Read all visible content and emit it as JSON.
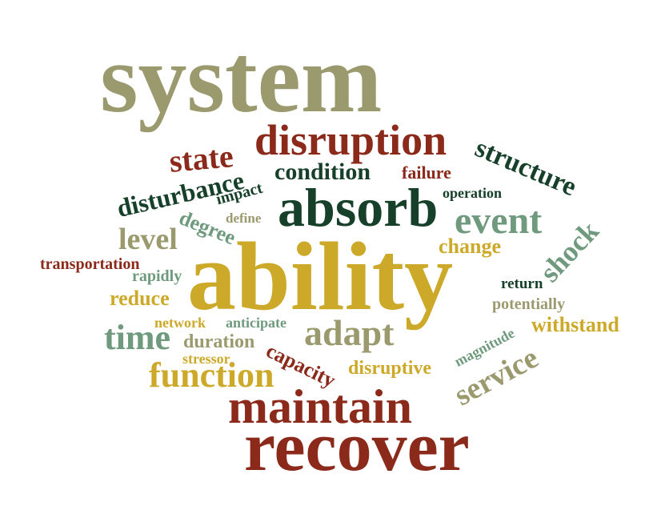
{
  "palette": {
    "olive": "#9b9a6e",
    "red": "#8b2a1a",
    "darkgreen": "#17402a",
    "gold": "#cda92a",
    "sage": "#6f9a7e"
  },
  "words": [
    {
      "text": "system",
      "color": "olive"
    },
    {
      "text": "disruption",
      "color": "red"
    },
    {
      "text": "structure",
      "color": "darkgreen"
    },
    {
      "text": "state",
      "color": "red"
    },
    {
      "text": "condition",
      "color": "darkgreen"
    },
    {
      "text": "failure",
      "color": "red"
    },
    {
      "text": "disturbance",
      "color": "darkgreen"
    },
    {
      "text": "impact",
      "color": "darkgreen"
    },
    {
      "text": "absorb",
      "color": "darkgreen"
    },
    {
      "text": "operation",
      "color": "darkgreen"
    },
    {
      "text": "event",
      "color": "sage"
    },
    {
      "text": "degree",
      "color": "sage"
    },
    {
      "text": "define",
      "color": "olive"
    },
    {
      "text": "shock",
      "color": "sage"
    },
    {
      "text": "level",
      "color": "olive"
    },
    {
      "text": "change",
      "color": "gold"
    },
    {
      "text": "transportation",
      "color": "red"
    },
    {
      "text": "ability",
      "color": "gold"
    },
    {
      "text": "rapidly",
      "color": "sage"
    },
    {
      "text": "return",
      "color": "darkgreen"
    },
    {
      "text": "reduce",
      "color": "gold"
    },
    {
      "text": "potentially",
      "color": "olive"
    },
    {
      "text": "network",
      "color": "gold"
    },
    {
      "text": "anticipate",
      "color": "sage"
    },
    {
      "text": "withstand",
      "color": "gold"
    },
    {
      "text": "magnitude",
      "color": "sage"
    },
    {
      "text": "time",
      "color": "sage"
    },
    {
      "text": "duration",
      "color": "olive"
    },
    {
      "text": "adapt",
      "color": "olive"
    },
    {
      "text": "capacity",
      "color": "red"
    },
    {
      "text": "service",
      "color": "olive"
    },
    {
      "text": "stressor",
      "color": "gold"
    },
    {
      "text": "disruptive",
      "color": "gold"
    },
    {
      "text": "function",
      "color": "gold"
    },
    {
      "text": "maintain",
      "color": "red"
    },
    {
      "text": "recover",
      "color": "red"
    }
  ]
}
